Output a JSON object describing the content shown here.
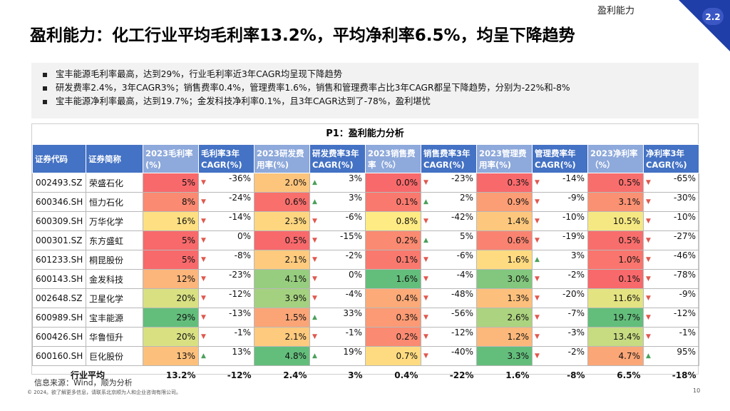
{
  "header": {
    "section": "盈利能力",
    "section_number": "2.2",
    "title": "盈利能力：化工行业平均毛利率13.2%，平均净利率6.5%，均呈下降趋势"
  },
  "summary": [
    "宝丰能源毛利率最高，达到29%，行业毛利率近3年CAGR均呈现下降趋势",
    "研发费率2.4%，3年CAGR3%；销售费率0.4%，管理费率1.6%，销售和管理费率占比3年CAGR都呈下降趋势，分别为-22%和-8%",
    "宝丰能源净利率最高，达到19.7%；金发科技净利率0.1%，且3年CAGR达到了-78%，盈利堪忧"
  ],
  "table": {
    "title": "P1：盈利能力分析",
    "headers": [
      "证券代码",
      "证券简称",
      "2023毛利率(%)",
      "毛利率3年CAGR(%)",
      "2023研发费用率(%)",
      "研发费率3年CAGR(%)",
      "2023销售费率（%）",
      "销售费率3年CAGR(%)",
      "2023管理费用率(%)",
      "管理费率年CAGR(%)",
      "2023净利率（%）",
      "净利率3年CAGR(%)"
    ],
    "rows": [
      {
        "code": "002493.SZ",
        "name": "荣盛石化",
        "gm": "5%",
        "gm_c": "-36%",
        "rd": "2.0%",
        "rd_c": "3%",
        "se": "0.0%",
        "se_c": "-23%",
        "mg": "0.3%",
        "mg_c": "-14%",
        "np": "0.5%",
        "np_c": "-65%"
      },
      {
        "code": "600346.SH",
        "name": "恒力石化",
        "gm": "8%",
        "gm_c": "-24%",
        "rd": "0.6%",
        "rd_c": "3%",
        "se": "0.1%",
        "se_c": "2%",
        "mg": "0.9%",
        "mg_c": "-9%",
        "np": "3.1%",
        "np_c": "-30%"
      },
      {
        "code": "600309.SH",
        "name": "万华化学",
        "gm": "16%",
        "gm_c": "-14%",
        "rd": "2.3%",
        "rd_c": "-6%",
        "se": "0.8%",
        "se_c": "-42%",
        "mg": "1.4%",
        "mg_c": "-10%",
        "np": "10.5%",
        "np_c": "-10%"
      },
      {
        "code": "000301.SZ",
        "name": "东方盛虹",
        "gm": "5%",
        "gm_c": "0%",
        "rd": "0.5%",
        "rd_c": "-15%",
        "se": "0.2%",
        "se_c": "5%",
        "mg": "0.6%",
        "mg_c": "-19%",
        "np": "0.5%",
        "np_c": "-27%"
      },
      {
        "code": "601233.SH",
        "name": "桐昆股份",
        "gm": "5%",
        "gm_c": "-8%",
        "rd": "2.1%",
        "rd_c": "-2%",
        "se": "0.1%",
        "se_c": "-6%",
        "mg": "1.6%",
        "mg_c": "3%",
        "np": "1.0%",
        "np_c": "-46%"
      },
      {
        "code": "600143.SH",
        "name": "金发科技",
        "gm": "12%",
        "gm_c": "-23%",
        "rd": "4.1%",
        "rd_c": "0%",
        "se": "1.6%",
        "se_c": "-4%",
        "mg": "3.0%",
        "mg_c": "-2%",
        "np": "0.1%",
        "np_c": "-78%"
      },
      {
        "code": "002648.SZ",
        "name": "卫星化学",
        "gm": "20%",
        "gm_c": "-12%",
        "rd": "3.9%",
        "rd_c": "-4%",
        "se": "0.4%",
        "se_c": "-48%",
        "mg": "1.3%",
        "mg_c": "-20%",
        "np": "11.6%",
        "np_c": "-9%"
      },
      {
        "code": "600989.SH",
        "name": "宝丰能源",
        "gm": "29%",
        "gm_c": "-13%",
        "rd": "1.5%",
        "rd_c": "33%",
        "se": "0.3%",
        "se_c": "-56%",
        "mg": "2.6%",
        "mg_c": "-7%",
        "np": "19.7%",
        "np_c": "-12%"
      },
      {
        "code": "600426.SH",
        "name": "华鲁恒升",
        "gm": "20%",
        "gm_c": "-1%",
        "rd": "2.1%",
        "rd_c": "-1%",
        "se": "0.2%",
        "se_c": "-12%",
        "mg": "1.2%",
        "mg_c": "-3%",
        "np": "13.4%",
        "np_c": "-1%"
      },
      {
        "code": "600160.SH",
        "name": "巨化股份",
        "gm": "13%",
        "gm_c": "13%",
        "rd": "4.8%",
        "rd_c": "19%",
        "se": "0.7%",
        "se_c": "-40%",
        "mg": "3.3%",
        "mg_c": "-2%",
        "np": "4.7%",
        "np_c": "95%"
      }
    ],
    "average": {
      "label": "行业平均",
      "gm": "13.2%",
      "gm_c": "-12%",
      "rd": "2.4%",
      "rd_c": "3%",
      "se": "0.4%",
      "se_c": "-22%",
      "mg": "1.6%",
      "mg_c": "-8%",
      "np": "6.5%",
      "np_c": "-18%"
    }
  },
  "source": "信息来源：Wind，顺为分析",
  "footer": "© 2024。欲了解更多信息，请联系北京顺为人和企业咨询有限公司。",
  "page_number": "10",
  "colors": {
    "header_blue": "#4472c4",
    "header_light": "#8ea9db",
    "accent": "#1f3ea8",
    "red": "#f8696b",
    "yellow": "#ffeb84",
    "green": "#63be7b",
    "arrow_down": "#e0584e",
    "arrow_up": "#4aa05a"
  },
  "icons": {
    "decrease": "triangle-down-icon",
    "increase": "triangle-up-icon"
  }
}
